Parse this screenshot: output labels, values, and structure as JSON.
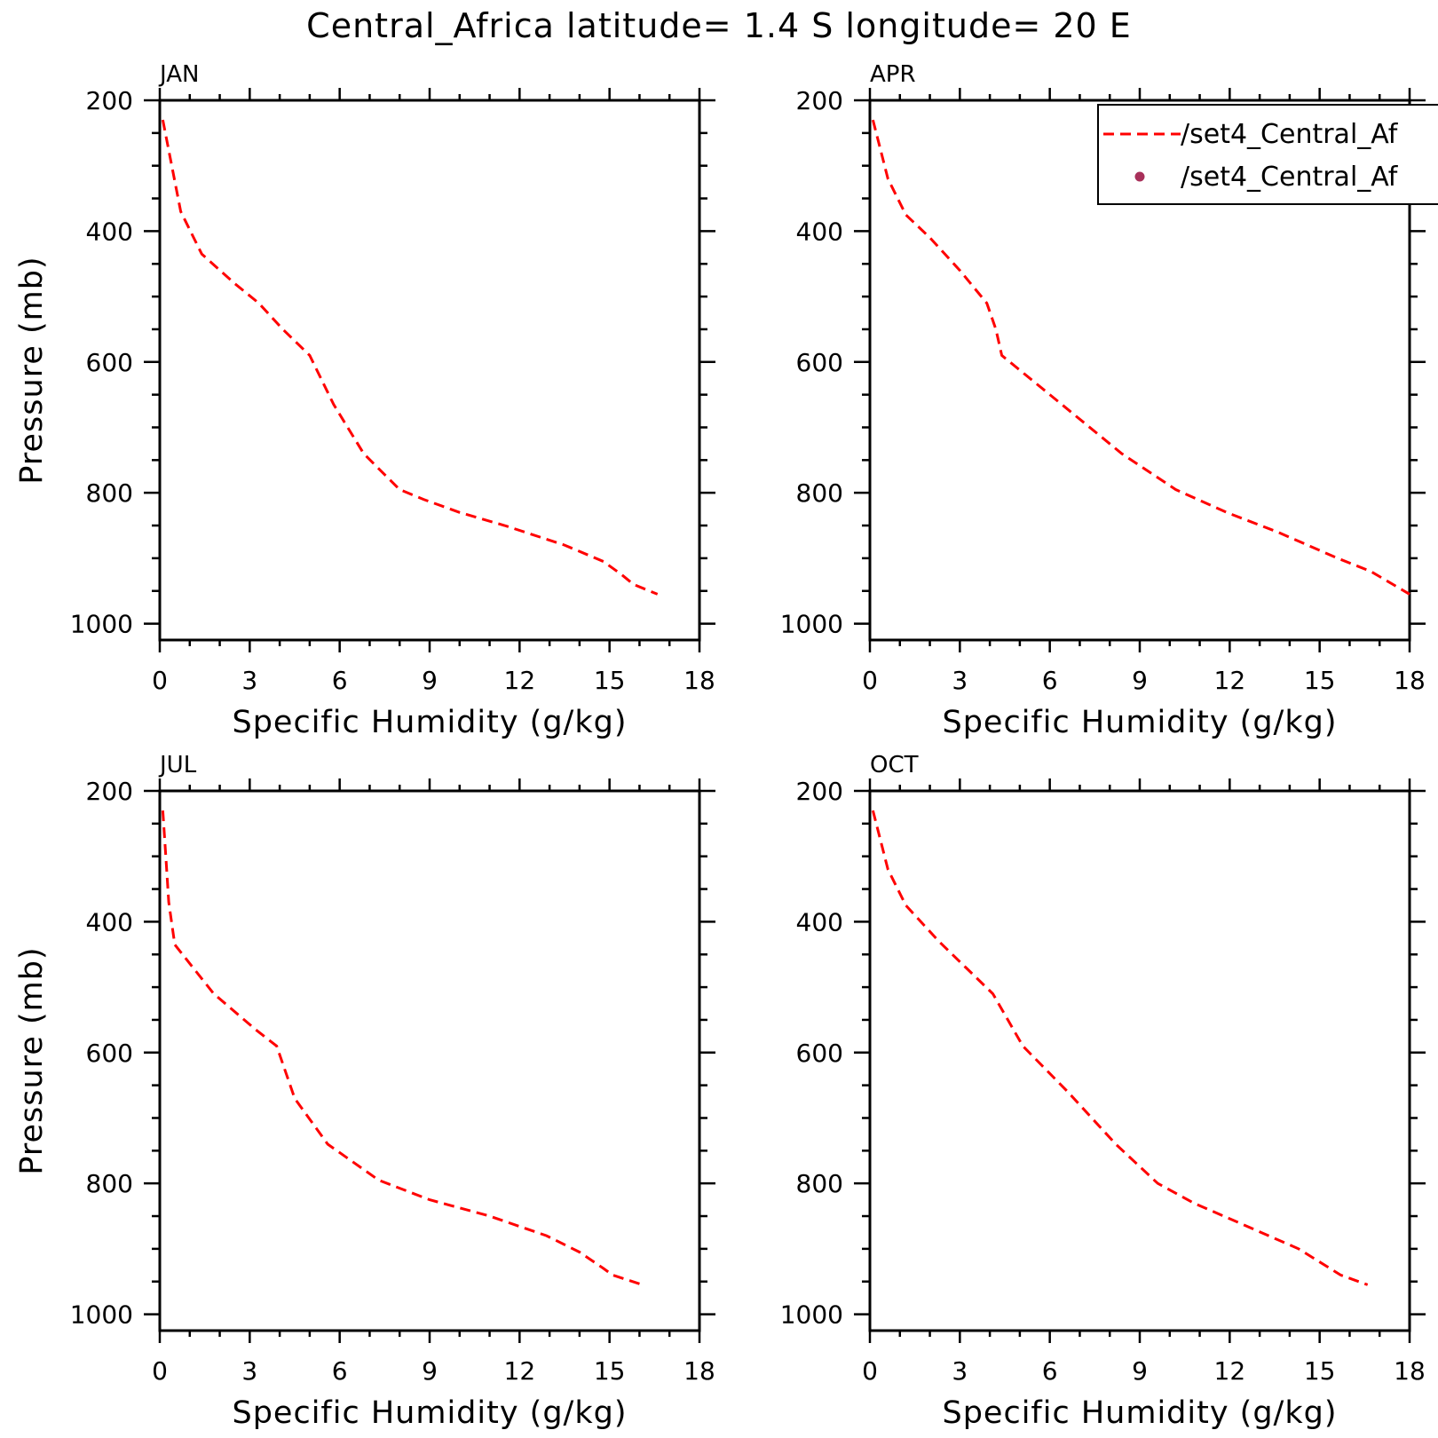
{
  "title": "Central_Africa  latitude= 1.4 S longitude= 20 E",
  "legend": {
    "placement": "top-right of APR panel (clipped at figure edge)",
    "entries": [
      {
        "label": "/set4_Central_Af",
        "style": "dashed-line",
        "color": "#ff0000"
      },
      {
        "label": "/set4_Central_Af",
        "style": "dot",
        "color": "#a8305a"
      }
    ]
  },
  "chart_data": [
    {
      "type": "line",
      "panel": "JAN",
      "xlabel": "Specific Humidity (g/kg)",
      "ylabel": "Pressure (mb)",
      "xlim": [
        0,
        18
      ],
      "ylim": [
        1025,
        200
      ],
      "y_inverted": true,
      "xticks": [
        "0",
        "3",
        "6",
        "9",
        "12",
        "15",
        "18"
      ],
      "yticks": [
        "200",
        "400",
        "600",
        "800",
        "1000"
      ],
      "series": [
        {
          "x": [
            0.1,
            0.4,
            0.7,
            1.4,
            2.5,
            3.3,
            4.1,
            5.0,
            5.8,
            6.8,
            8.0,
            8.8,
            10.0,
            11.5,
            13.5,
            14.8,
            15.4,
            15.8,
            16.6
          ],
          "y": [
            230,
            300,
            370,
            435,
            480,
            510,
            550,
            590,
            665,
            740,
            795,
            810,
            830,
            850,
            880,
            905,
            925,
            940,
            955
          ]
        }
      ]
    },
    {
      "type": "line",
      "panel": "APR",
      "xlabel": "Specific Humidity (g/kg)",
      "ylabel": "",
      "xlim": [
        0,
        18
      ],
      "ylim": [
        1025,
        200
      ],
      "y_inverted": true,
      "xticks": [
        "0",
        "3",
        "6",
        "9",
        "12",
        "15",
        "18"
      ],
      "yticks": [
        "200",
        "400",
        "600",
        "800",
        "1000"
      ],
      "series": [
        {
          "x": [
            0.1,
            0.6,
            1.2,
            2.0,
            3.0,
            3.9,
            4.2,
            4.4,
            6.0,
            8.4,
            10.2,
            11.9,
            13.6,
            15.6,
            16.7,
            18.0
          ],
          "y": [
            230,
            320,
            375,
            410,
            460,
            510,
            550,
            590,
            650,
            740,
            795,
            830,
            860,
            900,
            920,
            955
          ]
        }
      ]
    },
    {
      "type": "line",
      "panel": "JUL",
      "xlabel": "Specific Humidity (g/kg)",
      "ylabel": "Pressure (mb)",
      "xlim": [
        0,
        18
      ],
      "ylim": [
        1025,
        200
      ],
      "y_inverted": true,
      "xticks": [
        "0",
        "3",
        "6",
        "9",
        "12",
        "15",
        "18"
      ],
      "yticks": [
        "200",
        "400",
        "600",
        "800",
        "1000"
      ],
      "series": [
        {
          "x": [
            0.1,
            0.2,
            0.3,
            0.5,
            1.8,
            3.2,
            3.9,
            4.5,
            5.6,
            7.3,
            9.0,
            11.0,
            12.9,
            14.0,
            14.8,
            15.1,
            16.1
          ],
          "y": [
            230,
            300,
            370,
            435,
            510,
            565,
            590,
            670,
            740,
            795,
            825,
            850,
            880,
            905,
            930,
            940,
            955
          ]
        }
      ]
    },
    {
      "type": "line",
      "panel": "OCT",
      "xlabel": "Specific Humidity (g/kg)",
      "ylabel": "",
      "xlim": [
        0,
        18
      ],
      "ylim": [
        1025,
        200
      ],
      "y_inverted": true,
      "xticks": [
        "0",
        "3",
        "6",
        "9",
        "12",
        "15",
        "18"
      ],
      "yticks": [
        "200",
        "400",
        "600",
        "800",
        "1000"
      ],
      "series": [
        {
          "x": [
            0.1,
            0.6,
            1.2,
            2.3,
            3.2,
            4.1,
            4.6,
            5.1,
            6.6,
            8.2,
            9.6,
            10.8,
            12.3,
            14.3,
            15.7,
            16.6
          ],
          "y": [
            230,
            320,
            375,
            430,
            470,
            510,
            550,
            590,
            660,
            740,
            800,
            830,
            860,
            900,
            940,
            955
          ]
        }
      ]
    }
  ]
}
